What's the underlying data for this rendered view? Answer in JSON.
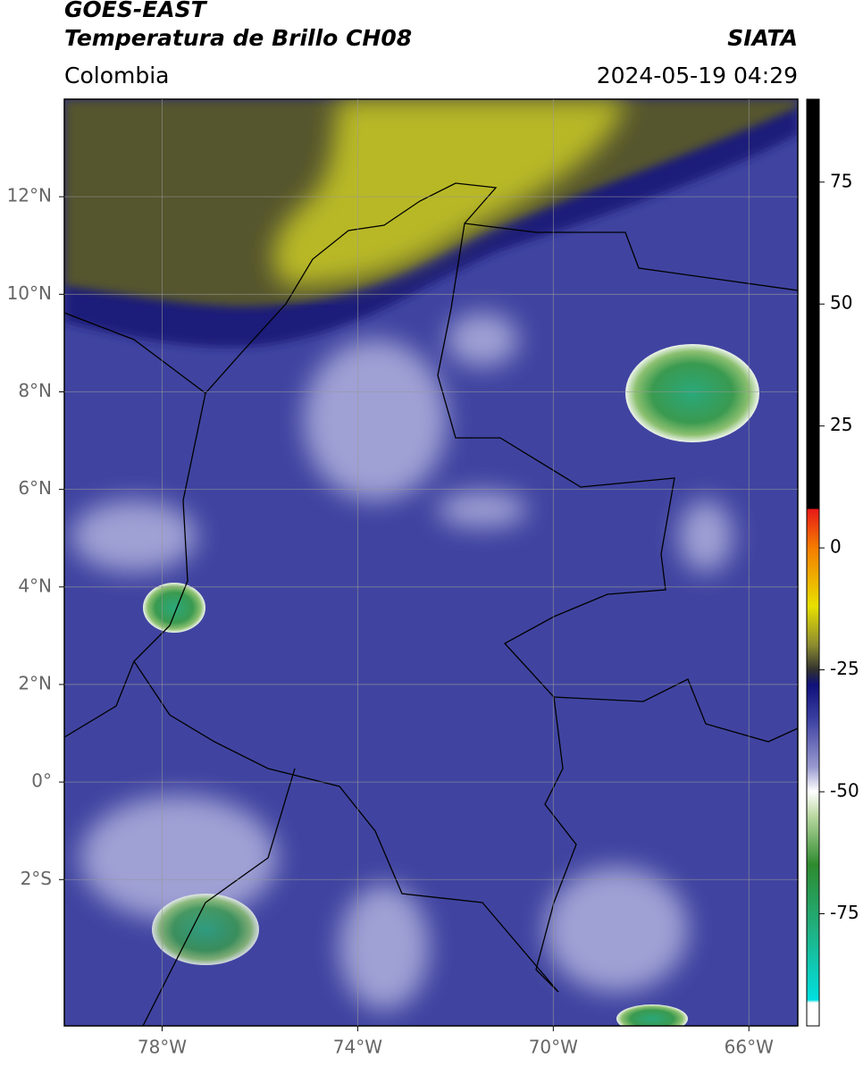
{
  "map": {
    "title": "GOES-EAST",
    "subtitle": "Temperatura de Brillo CH08",
    "source": "SIATA",
    "region": "Colombia",
    "datetime": "2024-05-19 04:29",
    "lonlim": [
      -80,
      -65
    ],
    "latlim": [
      -5,
      14
    ],
    "lon_ticks": [
      {
        "value": -78,
        "label": "78°W"
      },
      {
        "value": -74,
        "label": "74°W"
      },
      {
        "value": -70,
        "label": "70°W"
      },
      {
        "value": -66,
        "label": "66°W"
      }
    ],
    "lat_ticks": [
      {
        "value": 12,
        "label": "12°N"
      },
      {
        "value": 10,
        "label": "10°N"
      },
      {
        "value": 8,
        "label": "8°N"
      },
      {
        "value": 6,
        "label": "6°N"
      },
      {
        "value": 4,
        "label": "4°N"
      },
      {
        "value": 2,
        "label": "2°N"
      },
      {
        "value": 0,
        "label": "0°"
      },
      {
        "value": -2,
        "label": "2°S"
      }
    ],
    "grid": true,
    "colorbar": {
      "lim": [
        -98,
        92
      ],
      "ticks": [
        75,
        50,
        25,
        0,
        -25,
        -50,
        -75
      ]
    }
  }
}
